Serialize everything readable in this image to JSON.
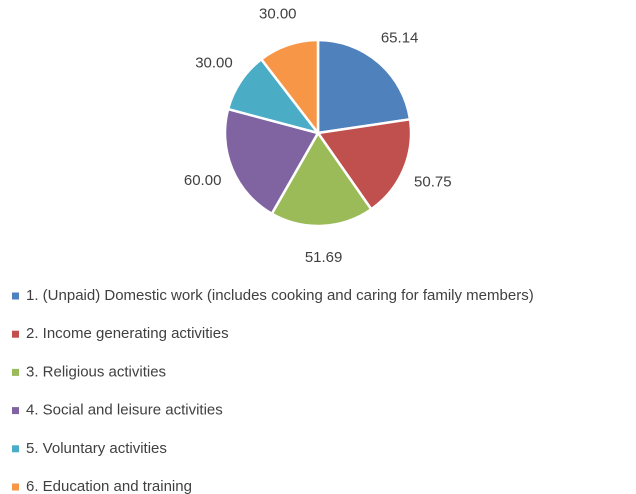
{
  "chart_data": {
    "type": "pie",
    "categories": [
      "1. (Unpaid) Domestic work (includes cooking and caring for family members)",
      "2. Income generating activities",
      "3. Religious activities",
      "4. Social and leisure activities",
      "5. Voluntary activities",
      "6. Education and training"
    ],
    "values": [
      65.14,
      50.75,
      51.69,
      60,
      30,
      30
    ],
    "value_labels": [
      "65.14",
      "50.75",
      "51.69",
      "60.00",
      "30.00",
      "30.00"
    ],
    "colors": [
      "#4f81bd",
      "#c0504d",
      "#9bbb59",
      "#8064a2",
      "#4bacc6",
      "#f79646"
    ],
    "legend": "bottom"
  }
}
